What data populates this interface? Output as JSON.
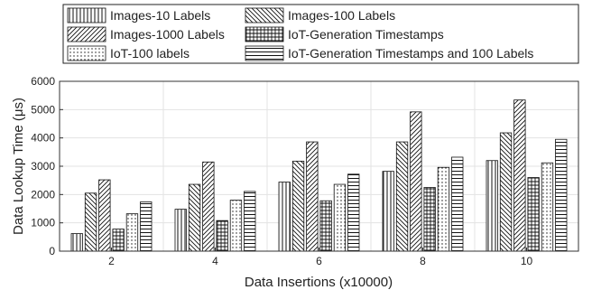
{
  "chart_data": {
    "type": "bar",
    "title": "",
    "xlabel": "Data Insertions (x10000)",
    "ylabel": "Data Lookup Time (μs)",
    "categories": [
      "2",
      "4",
      "6",
      "8",
      "10"
    ],
    "ylim": [
      0,
      6000
    ],
    "yticks": [
      "0",
      "1000",
      "2000",
      "3000",
      "4000",
      "5000",
      "6000"
    ],
    "grid": true,
    "legend_position": "top, outside plot, two columns",
    "series": [
      {
        "name": "Images-10 Labels",
        "pattern": "vertical-lines",
        "values": [
          620,
          1480,
          2440,
          2820,
          3200
        ]
      },
      {
        "name": "Images-100 Labels",
        "pattern": "diagonal-back",
        "values": [
          2050,
          2360,
          3180,
          3860,
          4180
        ]
      },
      {
        "name": "Images-1000 Labels",
        "pattern": "diagonal-forward",
        "values": [
          2520,
          3150,
          3860,
          4920,
          5340
        ]
      },
      {
        "name": "IoT-Generation Timestamps",
        "pattern": "crosshatch",
        "values": [
          780,
          1080,
          1780,
          2250,
          2600
        ]
      },
      {
        "name": "IoT-100 labels",
        "pattern": "dots",
        "values": [
          1320,
          1800,
          2360,
          2960,
          3120
        ]
      },
      {
        "name": "IoT-Generation Timestamps and 100 Labels",
        "pattern": "horizontal-lines",
        "values": [
          1740,
          2110,
          2720,
          3320,
          3950
        ]
      }
    ],
    "colors": {
      "bar_fill": "#ffffff",
      "pattern": "#111111",
      "grid": "#e3e3e3",
      "axis": "#333333"
    }
  }
}
